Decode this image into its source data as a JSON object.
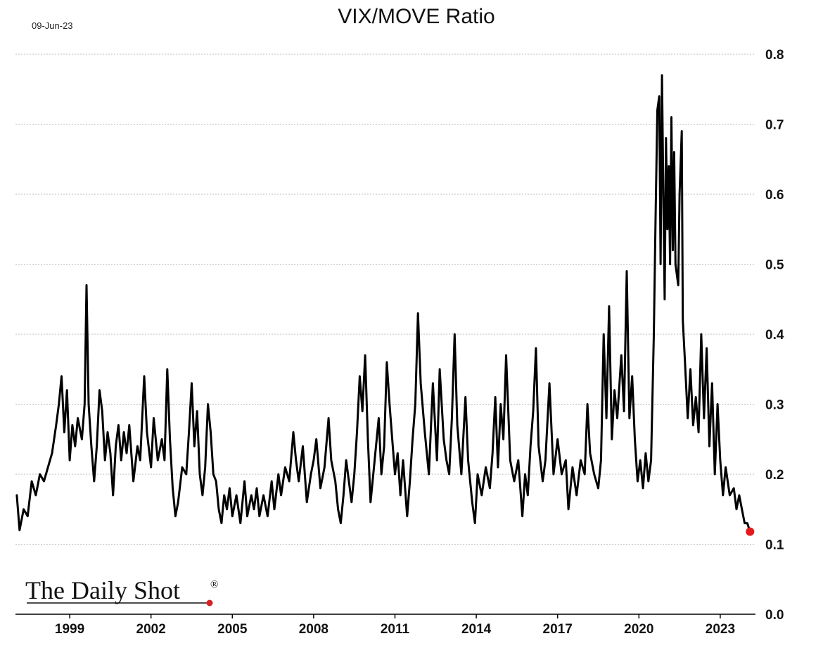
{
  "header": {
    "date": "09-Jun-23"
  },
  "brand": {
    "name": "The Daily Shot",
    "mark": "®",
    "dot_color": "#d62027"
  },
  "chart_data": {
    "type": "line",
    "title": "VIX/MOVE Ratio",
    "xlabel": "",
    "ylabel": "",
    "ylim": [
      0.0,
      0.8
    ],
    "xlim": [
      1997.0,
      2024.3
    ],
    "yticks": [
      "0.0",
      "0.1",
      "0.2",
      "0.3",
      "0.4",
      "0.5",
      "0.6",
      "0.7",
      "0.8"
    ],
    "xticks": [
      "1999",
      "2002",
      "2005",
      "2008",
      "2011",
      "2014",
      "2017",
      "2020",
      "2023"
    ],
    "y_axis_position": "right",
    "grid": "horizontal dotted",
    "line_color": "#000000",
    "last_point_color": "#e31a1c",
    "series": [
      {
        "values": [
          [
            1997.05,
            0.17
          ],
          [
            1997.15,
            0.12
          ],
          [
            1997.3,
            0.15
          ],
          [
            1997.45,
            0.14
          ],
          [
            1997.6,
            0.19
          ],
          [
            1997.75,
            0.17
          ],
          [
            1997.9,
            0.2
          ],
          [
            1998.05,
            0.19
          ],
          [
            1998.2,
            0.21
          ],
          [
            1998.35,
            0.23
          ],
          [
            1998.5,
            0.27
          ],
          [
            1998.6,
            0.3
          ],
          [
            1998.7,
            0.34
          ],
          [
            1998.8,
            0.26
          ],
          [
            1998.9,
            0.32
          ],
          [
            1999.0,
            0.22
          ],
          [
            1999.1,
            0.27
          ],
          [
            1999.2,
            0.24
          ],
          [
            1999.3,
            0.28
          ],
          [
            1999.45,
            0.25
          ],
          [
            1999.55,
            0.3
          ],
          [
            1999.62,
            0.47
          ],
          [
            1999.7,
            0.3
          ],
          [
            1999.8,
            0.24
          ],
          [
            1999.9,
            0.19
          ],
          [
            2000.0,
            0.24
          ],
          [
            2000.1,
            0.32
          ],
          [
            2000.2,
            0.29
          ],
          [
            2000.3,
            0.22
          ],
          [
            2000.4,
            0.26
          ],
          [
            2000.5,
            0.23
          ],
          [
            2000.6,
            0.17
          ],
          [
            2000.7,
            0.24
          ],
          [
            2000.8,
            0.27
          ],
          [
            2000.9,
            0.22
          ],
          [
            2001.0,
            0.26
          ],
          [
            2001.1,
            0.23
          ],
          [
            2001.2,
            0.27
          ],
          [
            2001.35,
            0.19
          ],
          [
            2001.5,
            0.24
          ],
          [
            2001.6,
            0.22
          ],
          [
            2001.75,
            0.34
          ],
          [
            2001.85,
            0.26
          ],
          [
            2002.0,
            0.21
          ],
          [
            2002.1,
            0.28
          ],
          [
            2002.25,
            0.22
          ],
          [
            2002.4,
            0.25
          ],
          [
            2002.5,
            0.22
          ],
          [
            2002.6,
            0.35
          ],
          [
            2002.7,
            0.25
          ],
          [
            2002.8,
            0.18
          ],
          [
            2002.9,
            0.14
          ],
          [
            2003.0,
            0.16
          ],
          [
            2003.15,
            0.21
          ],
          [
            2003.3,
            0.2
          ],
          [
            2003.4,
            0.26
          ],
          [
            2003.5,
            0.33
          ],
          [
            2003.6,
            0.24
          ],
          [
            2003.7,
            0.29
          ],
          [
            2003.8,
            0.2
          ],
          [
            2003.9,
            0.17
          ],
          [
            2004.0,
            0.21
          ],
          [
            2004.1,
            0.3
          ],
          [
            2004.2,
            0.26
          ],
          [
            2004.3,
            0.2
          ],
          [
            2004.4,
            0.19
          ],
          [
            2004.5,
            0.15
          ],
          [
            2004.6,
            0.13
          ],
          [
            2004.7,
            0.17
          ],
          [
            2004.8,
            0.15
          ],
          [
            2004.9,
            0.18
          ],
          [
            2005.0,
            0.14
          ],
          [
            2005.15,
            0.17
          ],
          [
            2005.3,
            0.13
          ],
          [
            2005.45,
            0.19
          ],
          [
            2005.55,
            0.14
          ],
          [
            2005.7,
            0.17
          ],
          [
            2005.8,
            0.15
          ],
          [
            2005.9,
            0.18
          ],
          [
            2006.0,
            0.14
          ],
          [
            2006.15,
            0.17
          ],
          [
            2006.3,
            0.14
          ],
          [
            2006.45,
            0.19
          ],
          [
            2006.55,
            0.15
          ],
          [
            2006.7,
            0.2
          ],
          [
            2006.8,
            0.17
          ],
          [
            2006.95,
            0.21
          ],
          [
            2007.1,
            0.19
          ],
          [
            2007.25,
            0.26
          ],
          [
            2007.35,
            0.22
          ],
          [
            2007.45,
            0.19
          ],
          [
            2007.6,
            0.24
          ],
          [
            2007.75,
            0.16
          ],
          [
            2007.9,
            0.2
          ],
          [
            2008.0,
            0.22
          ],
          [
            2008.1,
            0.25
          ],
          [
            2008.25,
            0.18
          ],
          [
            2008.4,
            0.21
          ],
          [
            2008.55,
            0.28
          ],
          [
            2008.65,
            0.22
          ],
          [
            2008.8,
            0.19
          ],
          [
            2008.9,
            0.15
          ],
          [
            2009.0,
            0.13
          ],
          [
            2009.1,
            0.17
          ],
          [
            2009.2,
            0.22
          ],
          [
            2009.3,
            0.19
          ],
          [
            2009.4,
            0.16
          ],
          [
            2009.5,
            0.2
          ],
          [
            2009.6,
            0.26
          ],
          [
            2009.7,
            0.34
          ],
          [
            2009.8,
            0.29
          ],
          [
            2009.9,
            0.37
          ],
          [
            2010.0,
            0.25
          ],
          [
            2010.1,
            0.16
          ],
          [
            2010.25,
            0.22
          ],
          [
            2010.4,
            0.28
          ],
          [
            2010.5,
            0.2
          ],
          [
            2010.6,
            0.24
          ],
          [
            2010.7,
            0.36
          ],
          [
            2010.8,
            0.3
          ],
          [
            2010.9,
            0.25
          ],
          [
            2011.0,
            0.2
          ],
          [
            2011.1,
            0.23
          ],
          [
            2011.2,
            0.17
          ],
          [
            2011.3,
            0.22
          ],
          [
            2011.45,
            0.14
          ],
          [
            2011.55,
            0.19
          ],
          [
            2011.65,
            0.25
          ],
          [
            2011.75,
            0.3
          ],
          [
            2011.85,
            0.43
          ],
          [
            2011.95,
            0.33
          ],
          [
            2012.1,
            0.26
          ],
          [
            2012.25,
            0.2
          ],
          [
            2012.4,
            0.33
          ],
          [
            2012.55,
            0.22
          ],
          [
            2012.65,
            0.35
          ],
          [
            2012.8,
            0.25
          ],
          [
            2012.9,
            0.22
          ],
          [
            2013.0,
            0.2
          ],
          [
            2013.1,
            0.28
          ],
          [
            2013.2,
            0.4
          ],
          [
            2013.3,
            0.27
          ],
          [
            2013.45,
            0.2
          ],
          [
            2013.6,
            0.31
          ],
          [
            2013.7,
            0.22
          ],
          [
            2013.85,
            0.16
          ],
          [
            2013.95,
            0.13
          ],
          [
            2014.05,
            0.2
          ],
          [
            2014.2,
            0.17
          ],
          [
            2014.35,
            0.21
          ],
          [
            2014.5,
            0.18
          ],
          [
            2014.6,
            0.23
          ],
          [
            2014.7,
            0.31
          ],
          [
            2014.8,
            0.21
          ],
          [
            2014.9,
            0.3
          ],
          [
            2015.0,
            0.25
          ],
          [
            2015.1,
            0.37
          ],
          [
            2015.25,
            0.22
          ],
          [
            2015.4,
            0.19
          ],
          [
            2015.55,
            0.22
          ],
          [
            2015.7,
            0.14
          ],
          [
            2015.8,
            0.2
          ],
          [
            2015.9,
            0.17
          ],
          [
            2016.0,
            0.24
          ],
          [
            2016.1,
            0.29
          ],
          [
            2016.2,
            0.38
          ],
          [
            2016.3,
            0.24
          ],
          [
            2016.45,
            0.19
          ],
          [
            2016.55,
            0.22
          ],
          [
            2016.7,
            0.33
          ],
          [
            2016.85,
            0.2
          ],
          [
            2017.0,
            0.25
          ],
          [
            2017.15,
            0.2
          ],
          [
            2017.3,
            0.22
          ],
          [
            2017.4,
            0.15
          ],
          [
            2017.55,
            0.21
          ],
          [
            2017.7,
            0.17
          ],
          [
            2017.85,
            0.22
          ],
          [
            2018.0,
            0.2
          ],
          [
            2018.1,
            0.3
          ],
          [
            2018.2,
            0.23
          ],
          [
            2018.35,
            0.2
          ],
          [
            2018.5,
            0.18
          ],
          [
            2018.6,
            0.22
          ],
          [
            2018.7,
            0.4
          ],
          [
            2018.8,
            0.28
          ],
          [
            2018.9,
            0.44
          ],
          [
            2019.0,
            0.25
          ],
          [
            2019.1,
            0.32
          ],
          [
            2019.2,
            0.28
          ],
          [
            2019.35,
            0.37
          ],
          [
            2019.45,
            0.29
          ],
          [
            2019.55,
            0.49
          ],
          [
            2019.65,
            0.28
          ],
          [
            2019.75,
            0.34
          ],
          [
            2019.85,
            0.25
          ],
          [
            2019.95,
            0.19
          ],
          [
            2020.05,
            0.22
          ],
          [
            2020.15,
            0.18
          ],
          [
            2020.25,
            0.23
          ],
          [
            2020.35,
            0.19
          ],
          [
            2020.45,
            0.22
          ],
          [
            2020.55,
            0.4
          ],
          [
            2020.62,
            0.58
          ],
          [
            2020.68,
            0.72
          ],
          [
            2020.75,
            0.74
          ],
          [
            2020.8,
            0.5
          ],
          [
            2020.85,
            0.77
          ],
          [
            2020.9,
            0.6
          ],
          [
            2020.95,
            0.45
          ],
          [
            2021.0,
            0.68
          ],
          [
            2021.05,
            0.55
          ],
          [
            2021.1,
            0.64
          ],
          [
            2021.15,
            0.5
          ],
          [
            2021.2,
            0.71
          ],
          [
            2021.25,
            0.52
          ],
          [
            2021.3,
            0.66
          ],
          [
            2021.35,
            0.5
          ],
          [
            2021.45,
            0.47
          ],
          [
            2021.5,
            0.6
          ],
          [
            2021.58,
            0.69
          ],
          [
            2021.62,
            0.42
          ],
          [
            2021.7,
            0.36
          ],
          [
            2021.8,
            0.28
          ],
          [
            2021.9,
            0.35
          ],
          [
            2022.0,
            0.27
          ],
          [
            2022.1,
            0.31
          ],
          [
            2022.2,
            0.26
          ],
          [
            2022.3,
            0.4
          ],
          [
            2022.4,
            0.28
          ],
          [
            2022.5,
            0.38
          ],
          [
            2022.6,
            0.24
          ],
          [
            2022.7,
            0.33
          ],
          [
            2022.8,
            0.2
          ],
          [
            2022.9,
            0.3
          ],
          [
            2023.0,
            0.22
          ],
          [
            2023.1,
            0.17
          ],
          [
            2023.2,
            0.21
          ],
          [
            2023.35,
            0.17
          ],
          [
            2023.5,
            0.18
          ],
          [
            2023.6,
            0.15
          ],
          [
            2023.7,
            0.17
          ],
          [
            2023.8,
            0.15
          ],
          [
            2023.9,
            0.13
          ],
          [
            2024.0,
            0.13
          ],
          [
            2024.1,
            0.118
          ]
        ]
      }
    ]
  }
}
